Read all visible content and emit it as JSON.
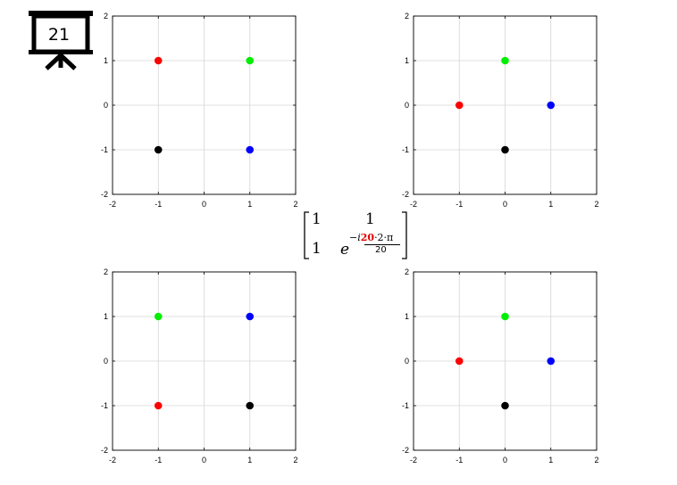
{
  "slide": {
    "number": "21"
  },
  "matrix": {
    "r1c1": "1",
    "r1c2": "1",
    "r2c1": "1",
    "r2c2_base": "e",
    "r2c2_exp_prefix": "−i",
    "r2c2_exp_num_red": "20",
    "r2c2_exp_num_rest": "·2·π",
    "r2c2_exp_den": "20"
  },
  "chart_data": [
    {
      "type": "scatter",
      "xlim": [
        -2,
        2
      ],
      "ylim": [
        -2,
        2
      ],
      "xticks": [
        "-2",
        "-1",
        "0",
        "1",
        "2"
      ],
      "yticks": [
        "2",
        "1",
        "0",
        "-1",
        "-2"
      ],
      "grid": true,
      "points": [
        {
          "x": -1,
          "y": 1,
          "color": "#ff0000"
        },
        {
          "x": 1,
          "y": 1,
          "color": "#00ee00"
        },
        {
          "x": -1,
          "y": -1,
          "color": "#000000"
        },
        {
          "x": 1,
          "y": -1,
          "color": "#0000ff"
        }
      ]
    },
    {
      "type": "scatter",
      "xlim": [
        -2,
        2
      ],
      "ylim": [
        -2,
        2
      ],
      "xticks": [
        "-2",
        "-1",
        "0",
        "1",
        "2"
      ],
      "yticks": [
        "2",
        "1",
        "0",
        "-1",
        "-2"
      ],
      "grid": true,
      "points": [
        {
          "x": -1,
          "y": 0,
          "color": "#ff0000"
        },
        {
          "x": 0,
          "y": 1,
          "color": "#00ee00"
        },
        {
          "x": 0,
          "y": -1,
          "color": "#000000"
        },
        {
          "x": 1,
          "y": 0,
          "color": "#0000ff"
        }
      ]
    },
    {
      "type": "scatter",
      "xlim": [
        -2,
        2
      ],
      "ylim": [
        -2,
        2
      ],
      "xticks": [
        "-2",
        "-1",
        "0",
        "1",
        "2"
      ],
      "yticks": [
        "2",
        "1",
        "0",
        "-1",
        "-2"
      ],
      "grid": true,
      "points": [
        {
          "x": -1,
          "y": -1,
          "color": "#ff0000"
        },
        {
          "x": -1,
          "y": 1,
          "color": "#00ee00"
        },
        {
          "x": 1,
          "y": -1,
          "color": "#000000"
        },
        {
          "x": 1,
          "y": 1,
          "color": "#0000ff"
        }
      ]
    },
    {
      "type": "scatter",
      "xlim": [
        -2,
        2
      ],
      "ylim": [
        -2,
        2
      ],
      "xticks": [
        "-2",
        "-1",
        "0",
        "1",
        "2"
      ],
      "yticks": [
        "2",
        "1",
        "0",
        "-1",
        "-2"
      ],
      "grid": true,
      "points": [
        {
          "x": -1,
          "y": 0,
          "color": "#ff0000"
        },
        {
          "x": 0,
          "y": 1,
          "color": "#00ee00"
        },
        {
          "x": 0,
          "y": -1,
          "color": "#000000"
        },
        {
          "x": 1,
          "y": 0,
          "color": "#0000ff"
        }
      ]
    }
  ]
}
